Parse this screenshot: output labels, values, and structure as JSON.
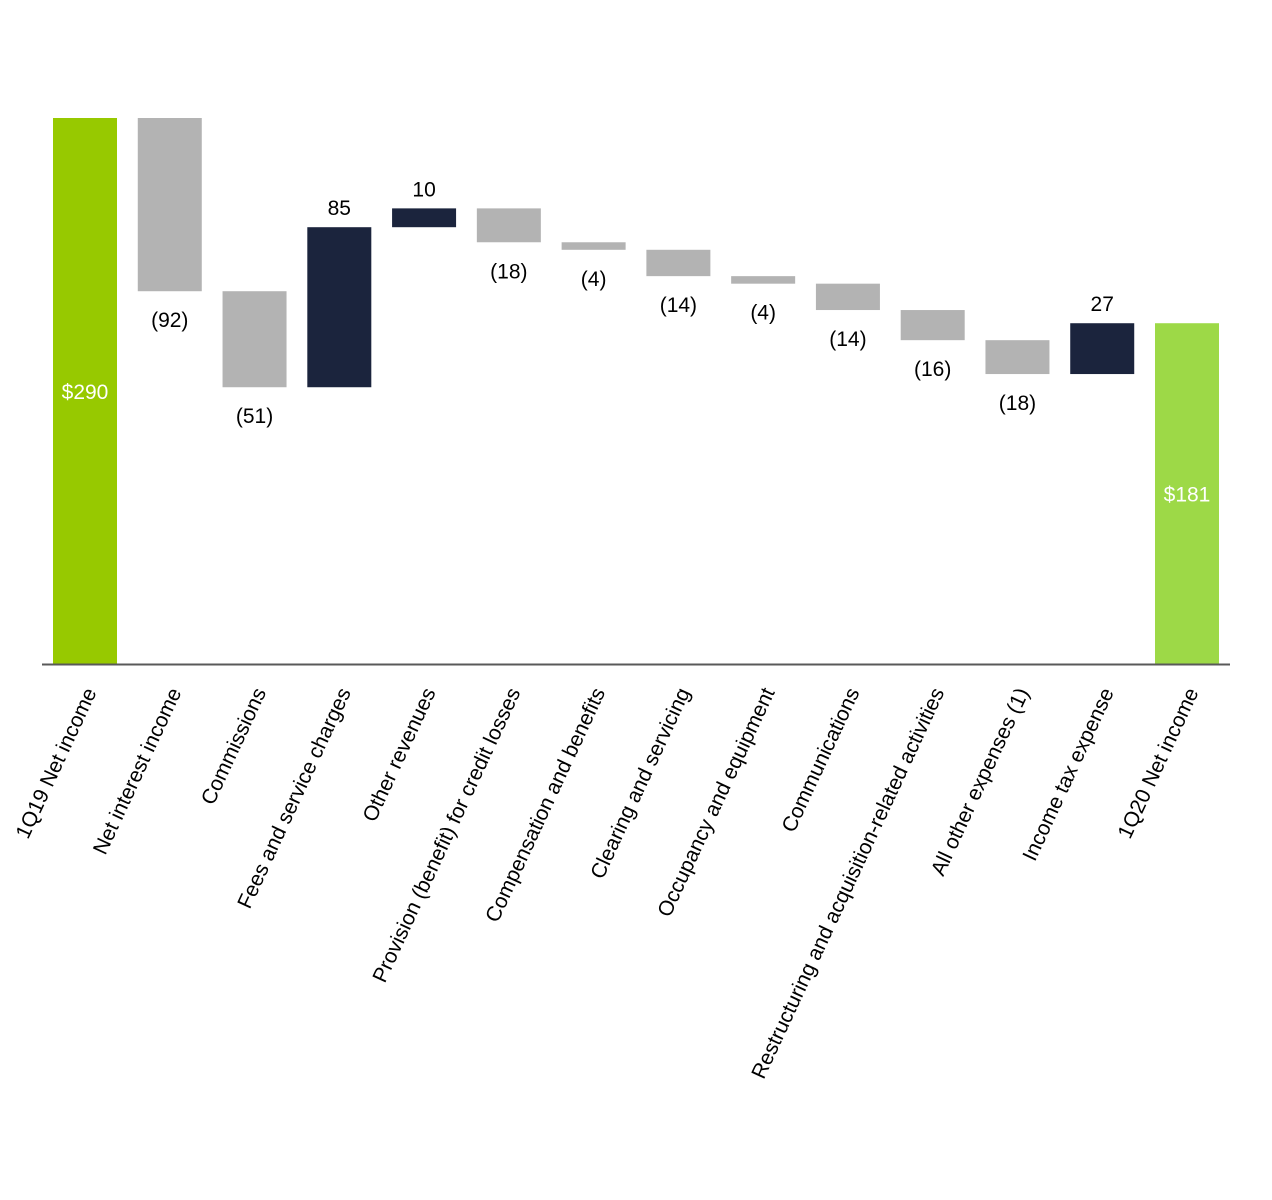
{
  "chart_data": {
    "type": "waterfall",
    "categories": [
      "1Q19 Net income",
      "Net interest income",
      "Commissions",
      "Fees and service charges",
      "Other revenues",
      "Provision (benefit) for credit losses",
      "Compensation and benefits",
      "Clearing and servicing",
      "Occupancy and equipment",
      "Communications",
      "Restructuring and acquisition-related activities",
      "All other expenses (1)",
      "Income tax expense",
      "1Q20 Net income"
    ],
    "values": [
      290,
      -92,
      -51,
      85,
      10,
      -18,
      -4,
      -14,
      -4,
      -14,
      -16,
      -18,
      27,
      181
    ],
    "value_labels": [
      "$290",
      "(92)",
      "(51)",
      "85",
      "10",
      "(18)",
      "(4)",
      "(14)",
      "(4)",
      "(14)",
      "(16)",
      "(18)",
      "27",
      "$181"
    ],
    "colors": [
      "#97c900",
      "#b3b3b3",
      "#b3b3b3",
      "#1b243d",
      "#1b243d",
      "#b3b3b3",
      "#b3b3b3",
      "#b3b3b3",
      "#b3b3b3",
      "#b3b3b3",
      "#b3b3b3",
      "#b3b3b3",
      "#1b243d",
      "#9dd947"
    ]
  }
}
